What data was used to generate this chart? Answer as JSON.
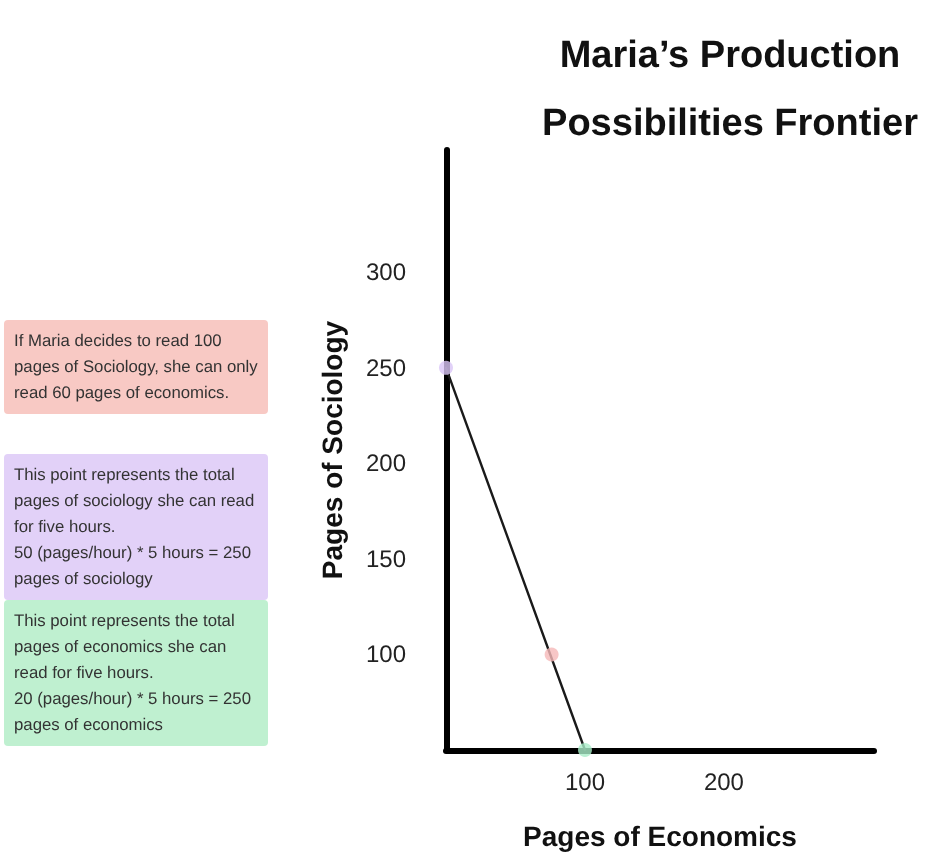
{
  "chart_data": {
    "type": "line",
    "title": "Maria’s Production\nPossibilities Frontier",
    "xlabel": "Pages of Economics",
    "ylabel": "Pages of Sociology",
    "xlim": [
      0,
      308
    ],
    "xticks": [
      100,
      200
    ],
    "ylim": [
      50,
      364
    ],
    "yticks": [
      100,
      150,
      200,
      250,
      300
    ],
    "grid": false,
    "marker": "none",
    "line_style": "solid",
    "series": [
      {
        "type": "line",
        "color": "#1a1a1a",
        "x": [
          0,
          100
        ],
        "values": [
          250,
          50
        ]
      },
      {
        "type": "scatter",
        "marker": "circle",
        "x": [
          0,
          76,
          100
        ],
        "values": [
          250,
          100,
          50
        ],
        "colors": [
          "#d9c6f6",
          "#f5b8b8",
          "#a9ecc8"
        ]
      }
    ],
    "annotations": [
      "If Maria decides to read 100 pages of Sociology, she can only read 60 pages of economics.",
      "This point represents the total pages of sociology she can read for five hours.\n50 (pages/hour) * 5 hours = 250 pages of sociology",
      "This point represents the total pages of economics she can read for five hours.\n20 (pages/hour) * 5 hours = 250 pages of economics"
    ]
  }
}
